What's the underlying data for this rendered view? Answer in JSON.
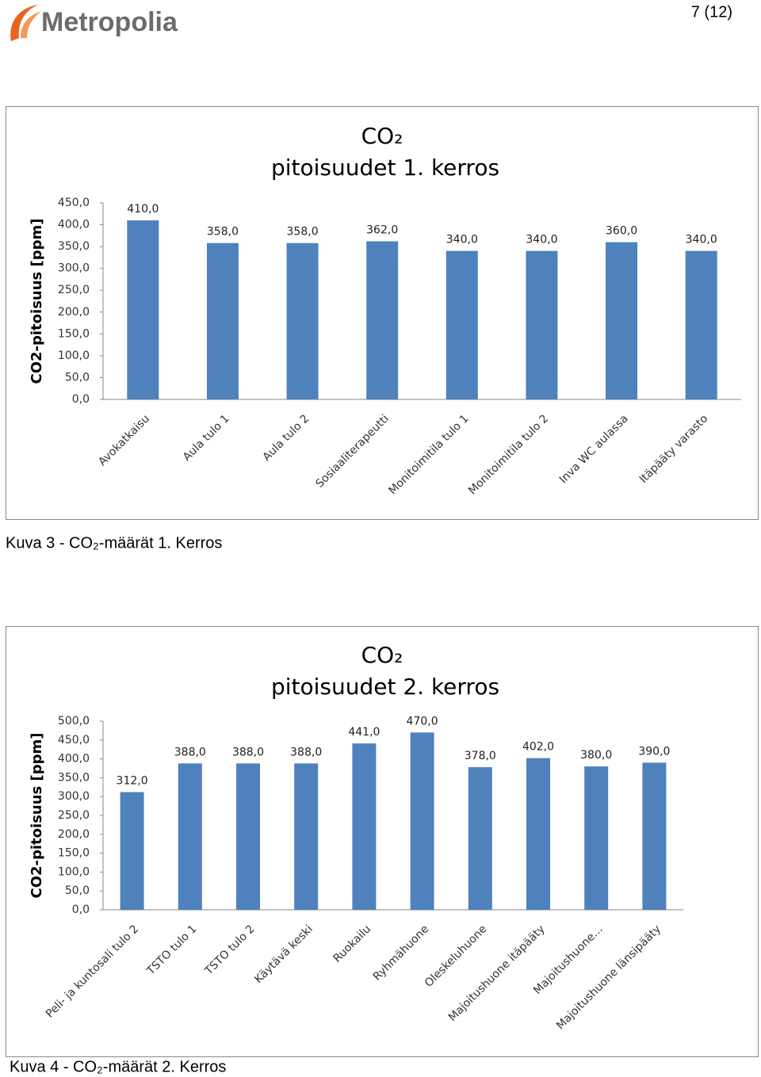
{
  "header": {
    "logo": "Metropolia",
    "page_number": "7 (12)"
  },
  "captions": [
    "Kuva 3 - CO₂-määrät 1. Kerros",
    "Kuva 4 - CO₂-määrät 2. Kerros"
  ],
  "chart_data": [
    {
      "type": "bar",
      "title": [
        "CO₂",
        "pitoisuudet 1. kerros"
      ],
      "y_label": "CO2-pitoisuus [ppm]",
      "color": "#4f81bd",
      "categories": [
        "Avokatkaisu",
        "Aula tulo 1",
        "Aula tulo 2",
        "Sosiaaliterapeutti",
        "Monitoimitila tulo 1",
        "Monitoimitila tulo 2",
        "Inva WC aulassa",
        "Itäpääty varasto"
      ],
      "values": [
        410,
        358,
        358,
        362,
        340,
        340,
        360,
        340
      ],
      "value_labels": [
        "410,0",
        "358,0",
        "358,0",
        "362,0",
        "340,0",
        "340,0",
        "360,0",
        "340,0"
      ],
      "ylim": [
        0,
        450
      ],
      "yticks": [
        {
          "value": 0,
          "label": "0,0"
        },
        {
          "value": 50,
          "label": "50,0"
        },
        {
          "value": 100,
          "label": "100,0"
        },
        {
          "value": 150,
          "label": "150,0"
        },
        {
          "value": 200,
          "label": "200,0"
        },
        {
          "value": 250,
          "label": "250,0"
        },
        {
          "value": 300,
          "label": "300,0"
        },
        {
          "value": 350,
          "label": "350,0"
        },
        {
          "value": 400,
          "label": "400,0"
        },
        {
          "value": 450,
          "label": "450,0"
        }
      ]
    },
    {
      "type": "bar",
      "title": [
        "CO₂",
        "pitoisuudet 2. kerros"
      ],
      "y_label": "CO2-pitoisuus [ppm]",
      "color": "#4f81bd",
      "categories": [
        "Peli- ja kuntosali tulo 2",
        "TSTO tulo 1",
        "TSTO tulo 2",
        "Käytävä keski",
        "Ruokailu",
        "Ryhmähuone",
        "Oleskeluhuone",
        "Majoitushuone itäpääty",
        "Majoitushuone…",
        "Majoitushuone länsipääty"
      ],
      "values": [
        312,
        388,
        388,
        388,
        441,
        470,
        378,
        402,
        380,
        390
      ],
      "value_labels": [
        "312,0",
        "388,0",
        "388,0",
        "388,0",
        "441,0",
        "470,0",
        "378,0",
        "402,0",
        "380,0",
        "390,0"
      ],
      "ylim": [
        0,
        500
      ],
      "yticks": [
        {
          "value": 0,
          "label": "0,0"
        },
        {
          "value": 50,
          "label": "50,0"
        },
        {
          "value": 100,
          "label": "100,0"
        },
        {
          "value": 150,
          "label": "150,0"
        },
        {
          "value": 200,
          "label": "200,0"
        },
        {
          "value": 250,
          "label": "250,0"
        },
        {
          "value": 300,
          "label": "300,0"
        },
        {
          "value": 350,
          "label": "350,0"
        },
        {
          "value": 400,
          "label": "400,0"
        },
        {
          "value": 450,
          "label": "450,0"
        },
        {
          "value": 500,
          "label": "500,0"
        }
      ]
    }
  ]
}
